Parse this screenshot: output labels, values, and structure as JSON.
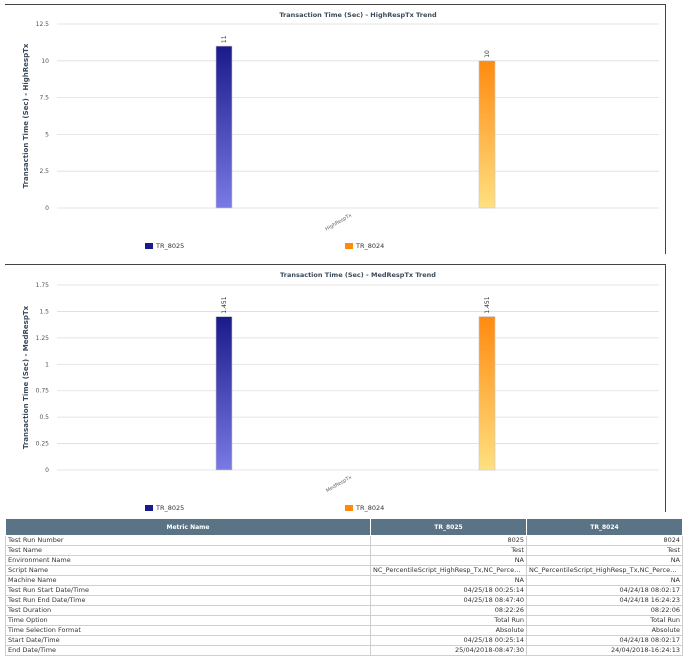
{
  "chart_data": [
    {
      "type": "bar",
      "title": "Transaction Time (Sec) - HighRespTx Trend",
      "ylabel": "Transaction Time (Sec) - HighRespTx",
      "xlabel": "",
      "categories": [
        "HighRespTx"
      ],
      "series": [
        {
          "name": "TR_8025",
          "values": [
            11
          ],
          "label": "11"
        },
        {
          "name": "TR_8024",
          "values": [
            10
          ],
          "label": "10"
        }
      ],
      "ylim": [
        0,
        12.5
      ],
      "yticks": [
        "0",
        "2.5",
        "5",
        "7.5",
        "10",
        "12.5"
      ],
      "ytick_values": [
        0,
        2.5,
        5,
        7.5,
        10,
        12.5
      ],
      "grid": true,
      "legend": "bottom",
      "colors": {
        "TR_8025": [
          "#1a1a8a",
          "#7a7ae6"
        ],
        "TR_8024": [
          "#ff8a10",
          "#ffe080"
        ]
      }
    },
    {
      "type": "bar",
      "title": "Transaction Time (Sec) - MedRespTx Trend",
      "ylabel": "Transaction Time (Sec) - MedRespTx",
      "xlabel": "",
      "categories": [
        "MedRespTx"
      ],
      "series": [
        {
          "name": "TR_8025",
          "values": [
            1.451
          ],
          "label": "1.451"
        },
        {
          "name": "TR_8024",
          "values": [
            1.451
          ],
          "label": "1.451"
        }
      ],
      "ylim": [
        0,
        1.75
      ],
      "yticks": [
        "0",
        "0.25",
        "0.5",
        "0.75",
        "1",
        "1.25",
        "1.5",
        "1.75"
      ],
      "ytick_values": [
        0,
        0.25,
        0.5,
        0.75,
        1,
        1.25,
        1.5,
        1.75
      ],
      "grid": true,
      "legend": "bottom",
      "colors": {
        "TR_8025": [
          "#1a1a8a",
          "#7a7ae6"
        ],
        "TR_8024": [
          "#ff8a10",
          "#ffe080"
        ]
      }
    }
  ],
  "metrics_table": {
    "headers": [
      "Metric Name",
      "TR_8025",
      "TR_8024"
    ],
    "rows": [
      [
        "Test Run Number",
        "8025",
        "8024"
      ],
      [
        "Test Name",
        "Test",
        "Test"
      ],
      [
        "Environment Name",
        "NA",
        "NA"
      ],
      [
        "Script Name",
        "NC_PercentileScript_HighResp_Tx,NC_Percentile...",
        "NC_PercentileScript_HighResp_Tx,NC_Percentile..."
      ],
      [
        "Machine Name",
        "NA",
        "NA"
      ],
      [
        "Test Run Start Date/Time",
        "04/25/18 00:25:14",
        "04/24/18 08:02:17"
      ],
      [
        "Test Run End Date/Time",
        "04/25/18 08:47:40",
        "04/24/18 16:24:23"
      ],
      [
        "Test Duration",
        "08:22:26",
        "08:22:06"
      ],
      [
        "Time Option",
        "Total Run",
        "Total Run"
      ],
      [
        "Time Selection Format",
        "Absolute",
        "Absolute"
      ],
      [
        "Start Date/Time",
        "04/25/18 00:25:14",
        "04/24/18 08:02:17"
      ],
      [
        "End Date/Time",
        "25/04/2018-08:47:30",
        "24/04/2018-16:24:13"
      ]
    ]
  }
}
